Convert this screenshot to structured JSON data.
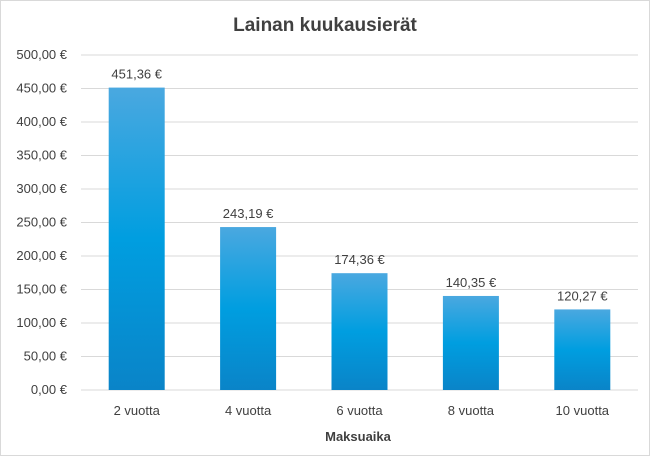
{
  "chart_data": {
    "type": "bar",
    "title": "Lainan kuukausierät",
    "xlabel": "Maksuaika",
    "ylabel": "",
    "categories": [
      "2 vuotta",
      "4 vuotta",
      "6 vuotta",
      "8 vuotta",
      "10 vuotta"
    ],
    "values": [
      451.36,
      243.19,
      174.36,
      140.35,
      120.27
    ],
    "data_labels": [
      "451,36 €",
      "243,19 €",
      "174,36 €",
      "140,35 €",
      "120,27 €"
    ],
    "ylim": [
      0,
      500
    ],
    "y_ticks": [
      0,
      50,
      100,
      150,
      200,
      250,
      300,
      350,
      400,
      450,
      500
    ],
    "y_tick_labels": [
      "0,00 €",
      "50,00 €",
      "100,00 €",
      "150,00 €",
      "200,00 €",
      "250,00 €",
      "300,00 €",
      "350,00 €",
      "400,00 €",
      "450,00 €",
      "500,00 €"
    ],
    "grid": true,
    "legend": "none",
    "colors": {
      "bar_top": "#4aa8e0",
      "bar_mid": "#009ee0",
      "bar_bottom": "#0a84c8",
      "grid": "#d9d9d9",
      "text": "#404040"
    }
  }
}
